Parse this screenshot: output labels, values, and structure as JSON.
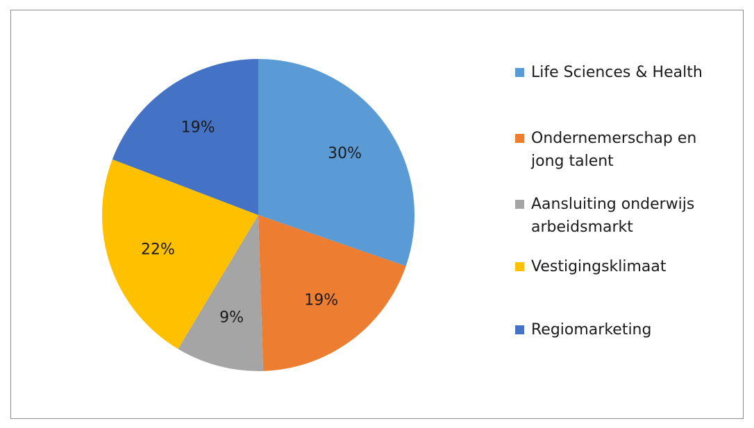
{
  "chart_data": {
    "type": "pie",
    "title": "",
    "legend_position": "right",
    "slices": [
      {
        "label": "Life Sciences & Health",
        "value": 30,
        "display": "30%",
        "color": "#5b9bd5"
      },
      {
        "label": "Ondernemerschap en jong talent",
        "value": 19,
        "display": "19%",
        "color": "#ed7d31"
      },
      {
        "label": "Aansluiting onderwijs arbeidsmarkt",
        "value": 9,
        "display": "9%",
        "color": "#a5a5a5"
      },
      {
        "label": "Vestigingsklimaat",
        "value": 22,
        "display": "22%",
        "color": "#ffc000"
      },
      {
        "label": "Regiomarketing",
        "value": 19,
        "display": "19%",
        "color": "#4472c4"
      }
    ]
  }
}
